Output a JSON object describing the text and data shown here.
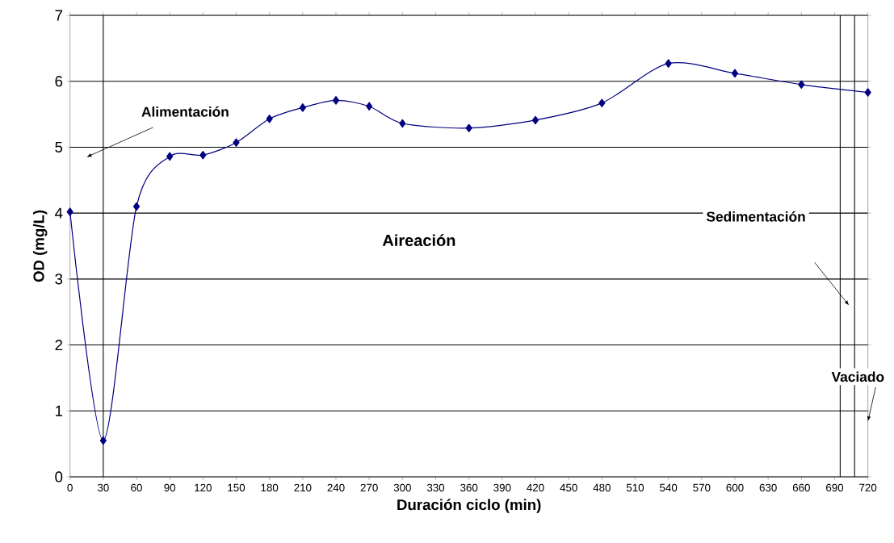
{
  "chart_data": {
    "type": "line",
    "xlabel": "Duración ciclo (min)",
    "ylabel": "OD (mg/L)",
    "x": [
      0,
      30,
      60,
      90,
      120,
      150,
      180,
      210,
      240,
      270,
      300,
      360,
      420,
      480,
      540,
      600,
      660,
      720
    ],
    "series": [
      {
        "color": "#000080",
        "values": [
          4.02,
          0.55,
          4.1,
          4.86,
          4.88,
          5.07,
          5.43,
          5.6,
          5.71,
          5.62,
          5.36,
          5.29,
          5.41,
          5.67,
          6.27,
          6.12,
          5.95,
          5.83
        ]
      }
    ],
    "xlim": [
      0,
      720
    ],
    "xticks": [
      0,
      30,
      60,
      90,
      120,
      150,
      180,
      210,
      240,
      270,
      300,
      330,
      360,
      390,
      420,
      450,
      480,
      510,
      540,
      570,
      600,
      630,
      660,
      690,
      720
    ],
    "ylim": [
      0,
      7
    ],
    "yticks": [
      0,
      1,
      2,
      3,
      4,
      5,
      6,
      7
    ],
    "grid": "y",
    "marker": "diamond",
    "line_style": "solid",
    "ref_lines": [
      {
        "axis": "x",
        "value": 30,
        "color": "#000000"
      },
      {
        "axis": "x",
        "value": 695,
        "color": "#000000"
      },
      {
        "axis": "x",
        "value": 708,
        "color": "#000000"
      }
    ],
    "annotations": [
      "Alimentación",
      "Aireación",
      "Sedimentación",
      "Vaciado"
    ]
  }
}
